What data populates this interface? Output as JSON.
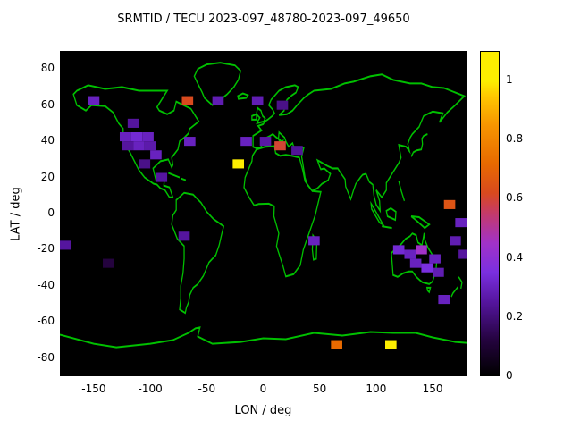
{
  "chart": {
    "title": "SRMTID / TECU 2023-097_48780-2023-097_49650",
    "xlabel": "LON / deg",
    "ylabel": "LAT / deg"
  },
  "chart_data": {
    "type": "heatmap",
    "title": "SRMTID / TECU 2023-097_48780-2023-097_49650",
    "xlabel": "LON / deg",
    "ylabel": "LAT / deg",
    "xlim": [
      -180,
      180
    ],
    "ylim": [
      -90,
      90
    ],
    "xticks": [
      -150,
      -100,
      -50,
      0,
      50,
      100,
      150
    ],
    "xtick_labels": [
      "-150",
      "-100",
      "-50",
      "0",
      "50",
      "100",
      "150"
    ],
    "yticks": [
      80,
      60,
      40,
      20,
      0,
      -20,
      -40,
      -60,
      -80
    ],
    "ytick_labels": [
      "80",
      "60",
      "40",
      "20",
      "0",
      "-20",
      "-40",
      "-60",
      "-80"
    ],
    "grid": false,
    "background_color": "#000000",
    "map_outline_color": "#00c000",
    "cell_size_deg": {
      "lon": 10,
      "lat": 5
    },
    "colorbar": {
      "min": 0,
      "max": 1.1,
      "ticks": [
        0,
        0.2,
        0.4,
        0.6,
        0.8,
        1
      ],
      "tick_labels": [
        "0",
        "0.2",
        "0.4",
        "0.6",
        "0.8",
        "1"
      ],
      "position": "right"
    },
    "palette_stops": [
      [
        0.0,
        "#000000"
      ],
      [
        0.12,
        "#24033e"
      ],
      [
        0.25,
        "#55159e"
      ],
      [
        0.35,
        "#7a2fe0"
      ],
      [
        0.45,
        "#a132c8"
      ],
      [
        0.55,
        "#c43a6a"
      ],
      [
        0.62,
        "#d84a1e"
      ],
      [
        0.72,
        "#e86a00"
      ],
      [
        0.85,
        "#f79500"
      ],
      [
        0.95,
        "#ffc800"
      ],
      [
        1.0,
        "#fdee00"
      ]
    ],
    "points": [
      {
        "lon": -175,
        "lat": -17.5,
        "value": 0.25
      },
      {
        "lon": -137,
        "lat": -27.5,
        "value": 0.12
      },
      {
        "lon": -150,
        "lat": 62.5,
        "value": 0.3
      },
      {
        "lon": -67,
        "lat": 62.5,
        "value": 0.62
      },
      {
        "lon": -40,
        "lat": 62.5,
        "value": 0.28
      },
      {
        "lon": -5,
        "lat": 62.5,
        "value": 0.28
      },
      {
        "lon": 17,
        "lat": 60,
        "value": 0.22
      },
      {
        "lon": -122,
        "lat": 42.5,
        "value": 0.3
      },
      {
        "lon": -112,
        "lat": 42.5,
        "value": 0.33
      },
      {
        "lon": -102,
        "lat": 42.5,
        "value": 0.3
      },
      {
        "lon": -120,
        "lat": 37.5,
        "value": 0.25
      },
      {
        "lon": -110,
        "lat": 37.5,
        "value": 0.3
      },
      {
        "lon": -100,
        "lat": 37.5,
        "value": 0.27
      },
      {
        "lon": -115,
        "lat": 50,
        "value": 0.25
      },
      {
        "lon": -95,
        "lat": 32.5,
        "value": 0.3
      },
      {
        "lon": -65,
        "lat": 40,
        "value": 0.3
      },
      {
        "lon": -90,
        "lat": 20,
        "value": 0.25
      },
      {
        "lon": -105,
        "lat": 27.5,
        "value": 0.22
      },
      {
        "lon": -22,
        "lat": 27.5,
        "value": 1.05
      },
      {
        "lon": -15,
        "lat": 40,
        "value": 0.3
      },
      {
        "lon": 2,
        "lat": 40,
        "value": 0.26
      },
      {
        "lon": 15,
        "lat": 37.5,
        "value": 0.6
      },
      {
        "lon": 30,
        "lat": 35,
        "value": 0.24
      },
      {
        "lon": -70,
        "lat": -12.5,
        "value": 0.25
      },
      {
        "lon": 45,
        "lat": -15,
        "value": 0.3
      },
      {
        "lon": 65,
        "lat": -72.5,
        "value": 0.72
      },
      {
        "lon": 113,
        "lat": -72.5,
        "value": 1.02
      },
      {
        "lon": 165,
        "lat": 5,
        "value": 0.65
      },
      {
        "lon": 175,
        "lat": -5,
        "value": 0.3
      },
      {
        "lon": 170,
        "lat": -15,
        "value": 0.28
      },
      {
        "lon": 178,
        "lat": -22.5,
        "value": 0.25
      },
      {
        "lon": 120,
        "lat": -20,
        "value": 0.33
      },
      {
        "lon": 130,
        "lat": -22.5,
        "value": 0.3
      },
      {
        "lon": 140,
        "lat": -20,
        "value": 0.45
      },
      {
        "lon": 135,
        "lat": -27.5,
        "value": 0.3
      },
      {
        "lon": 145,
        "lat": -30,
        "value": 0.35
      },
      {
        "lon": 152,
        "lat": -25,
        "value": 0.3
      },
      {
        "lon": 155,
        "lat": -32.5,
        "value": 0.28
      },
      {
        "lon": 160,
        "lat": -47.5,
        "value": 0.3
      }
    ]
  }
}
